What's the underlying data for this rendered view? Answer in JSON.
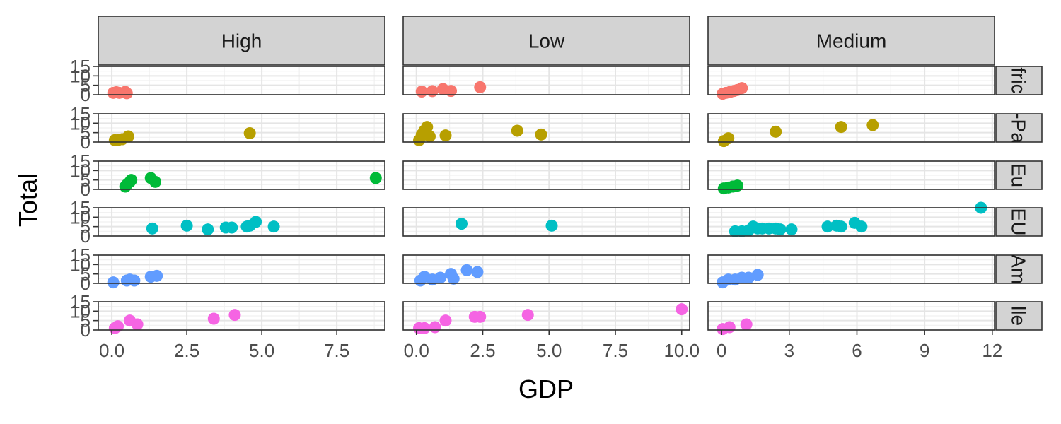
{
  "chart_data": {
    "type": "scatter",
    "xlabel": "GDP",
    "ylabel": "Total",
    "columns": [
      {
        "label": "High",
        "xlim": [
          -0.45,
          9.1
        ],
        "xticks": [
          0,
          2.5,
          5,
          7.5
        ],
        "xtick_labels": [
          "0.0",
          "2.5",
          "5.0",
          "7.5"
        ]
      },
      {
        "label": "Low",
        "xlim": [
          -0.5,
          10.3
        ],
        "xticks": [
          0,
          2.5,
          5,
          7.5,
          10
        ],
        "xtick_labels": [
          "0.0",
          "2.5",
          "5.0",
          "7.5",
          "10.0"
        ]
      },
      {
        "label": "Medium",
        "xlim": [
          -0.6,
          12.1
        ],
        "xticks": [
          0,
          3,
          6,
          9,
          12
        ],
        "xtick_labels": [
          "0",
          "3",
          "6",
          "9",
          "12"
        ]
      }
    ],
    "rows": [
      {
        "label": "Africa",
        "color": "#F8766D"
      },
      {
        "label": "Asia-Pacific",
        "color": "#B79F00"
      },
      {
        "label": "Eurasia",
        "color": "#00BA38"
      },
      {
        "label": "EU/EEA",
        "color": "#00BFC4"
      },
      {
        "label": "Americas",
        "color": "#619CFF"
      },
      {
        "label": "Middle East",
        "color": "#F564E3"
      }
    ],
    "row_strip_visible": [
      "fric",
      "-Pa",
      "Eu",
      "EU",
      "Am",
      "lle"
    ],
    "ylim": [
      0,
      15
    ],
    "yticks": [
      0,
      5,
      10,
      15
    ],
    "ytick_labels": [
      "0",
      "5",
      "10",
      "15"
    ],
    "grid": true,
    "points": [
      [
        [
          [
            0.05,
            1
          ],
          [
            0.15,
            1.3
          ],
          [
            0.25,
            1
          ],
          [
            0.45,
            1.5
          ],
          [
            0.5,
            0.8
          ]
        ],
        [
          [
            0.2,
            1.7
          ],
          [
            0.6,
            1.9
          ],
          [
            1.0,
            3
          ],
          [
            1.3,
            2
          ],
          [
            2.4,
            4
          ]
        ],
        [
          [
            0.05,
            0.5
          ],
          [
            0.2,
            1
          ],
          [
            0.4,
            1.6
          ],
          [
            0.55,
            2
          ],
          [
            0.7,
            2.5
          ],
          [
            0.9,
            3.5
          ]
        ]
      ],
      [
        [
          [
            0.1,
            1
          ],
          [
            0.2,
            1
          ],
          [
            0.35,
            1.5
          ],
          [
            0.55,
            3
          ],
          [
            4.6,
            4.7
          ]
        ],
        [
          [
            0.1,
            1
          ],
          [
            0.2,
            4
          ],
          [
            0.3,
            6
          ],
          [
            0.4,
            8
          ],
          [
            0.5,
            3
          ],
          [
            1.1,
            3.5
          ],
          [
            3.8,
            6
          ],
          [
            4.7,
            4
          ]
        ],
        [
          [
            0.1,
            0.5
          ],
          [
            0.3,
            2
          ],
          [
            2.4,
            5.5
          ],
          [
            5.3,
            8
          ],
          [
            6.7,
            9
          ]
        ]
      ],
      [
        [
          [
            0.45,
            1.5
          ],
          [
            0.5,
            2.5
          ],
          [
            0.6,
            4
          ],
          [
            0.65,
            5
          ],
          [
            1.3,
            6
          ],
          [
            1.45,
            4
          ],
          [
            8.8,
            6
          ]
        ],
        [],
        [
          [
            0.1,
            0.5
          ],
          [
            0.3,
            1
          ],
          [
            0.5,
            1.5
          ],
          [
            0.7,
            2
          ]
        ]
      ],
      [
        [
          [
            1.35,
            4
          ],
          [
            2.5,
            5.5
          ],
          [
            3.2,
            3.5
          ],
          [
            3.8,
            4.5
          ],
          [
            4.0,
            4.5
          ],
          [
            4.5,
            5
          ],
          [
            4.6,
            5.5
          ],
          [
            4.8,
            7.5
          ],
          [
            5.4,
            5
          ]
        ],
        [
          [
            1.7,
            6.5
          ],
          [
            5.1,
            5.5
          ]
        ],
        [
          [
            0.6,
            2.5
          ],
          [
            0.9,
            2.5
          ],
          [
            1.2,
            3
          ],
          [
            1.4,
            5
          ],
          [
            1.6,
            4
          ],
          [
            1.8,
            4
          ],
          [
            2.1,
            4
          ],
          [
            2.4,
            4
          ],
          [
            2.6,
            3.5
          ],
          [
            3.1,
            3.5
          ],
          [
            4.7,
            5
          ],
          [
            5.1,
            5.5
          ],
          [
            5.3,
            5
          ],
          [
            5.9,
            7
          ],
          [
            6.2,
            5
          ],
          [
            11.5,
            15
          ]
        ]
      ],
      [
        [
          [
            0.05,
            0.5
          ],
          [
            0.5,
            1.5
          ],
          [
            0.6,
            2
          ],
          [
            0.75,
            1.5
          ],
          [
            1.3,
            3.5
          ],
          [
            1.5,
            4
          ]
        ],
        [
          [
            0.15,
            1.5
          ],
          [
            0.3,
            3.5
          ],
          [
            0.6,
            2
          ],
          [
            0.9,
            3
          ],
          [
            1.3,
            5
          ],
          [
            1.4,
            2.5
          ],
          [
            1.9,
            7
          ],
          [
            2.3,
            6
          ]
        ],
        [
          [
            0.05,
            0.5
          ],
          [
            0.3,
            2
          ],
          [
            0.6,
            2
          ],
          [
            0.9,
            3
          ],
          [
            1.2,
            3
          ],
          [
            1.6,
            4.5
          ]
        ]
      ],
      [
        [
          [
            0.1,
            1
          ],
          [
            0.2,
            2
          ],
          [
            0.6,
            5
          ],
          [
            0.85,
            3
          ],
          [
            3.4,
            6
          ],
          [
            4.1,
            8
          ]
        ],
        [
          [
            0.1,
            1
          ],
          [
            0.3,
            1
          ],
          [
            0.7,
            1.5
          ],
          [
            1.1,
            5
          ],
          [
            2.2,
            7
          ],
          [
            2.4,
            7
          ],
          [
            4.2,
            8
          ],
          [
            10,
            11
          ]
        ],
        [
          [
            0.05,
            0.5
          ],
          [
            0.35,
            1.5
          ],
          [
            1.1,
            3
          ]
        ]
      ]
    ]
  }
}
